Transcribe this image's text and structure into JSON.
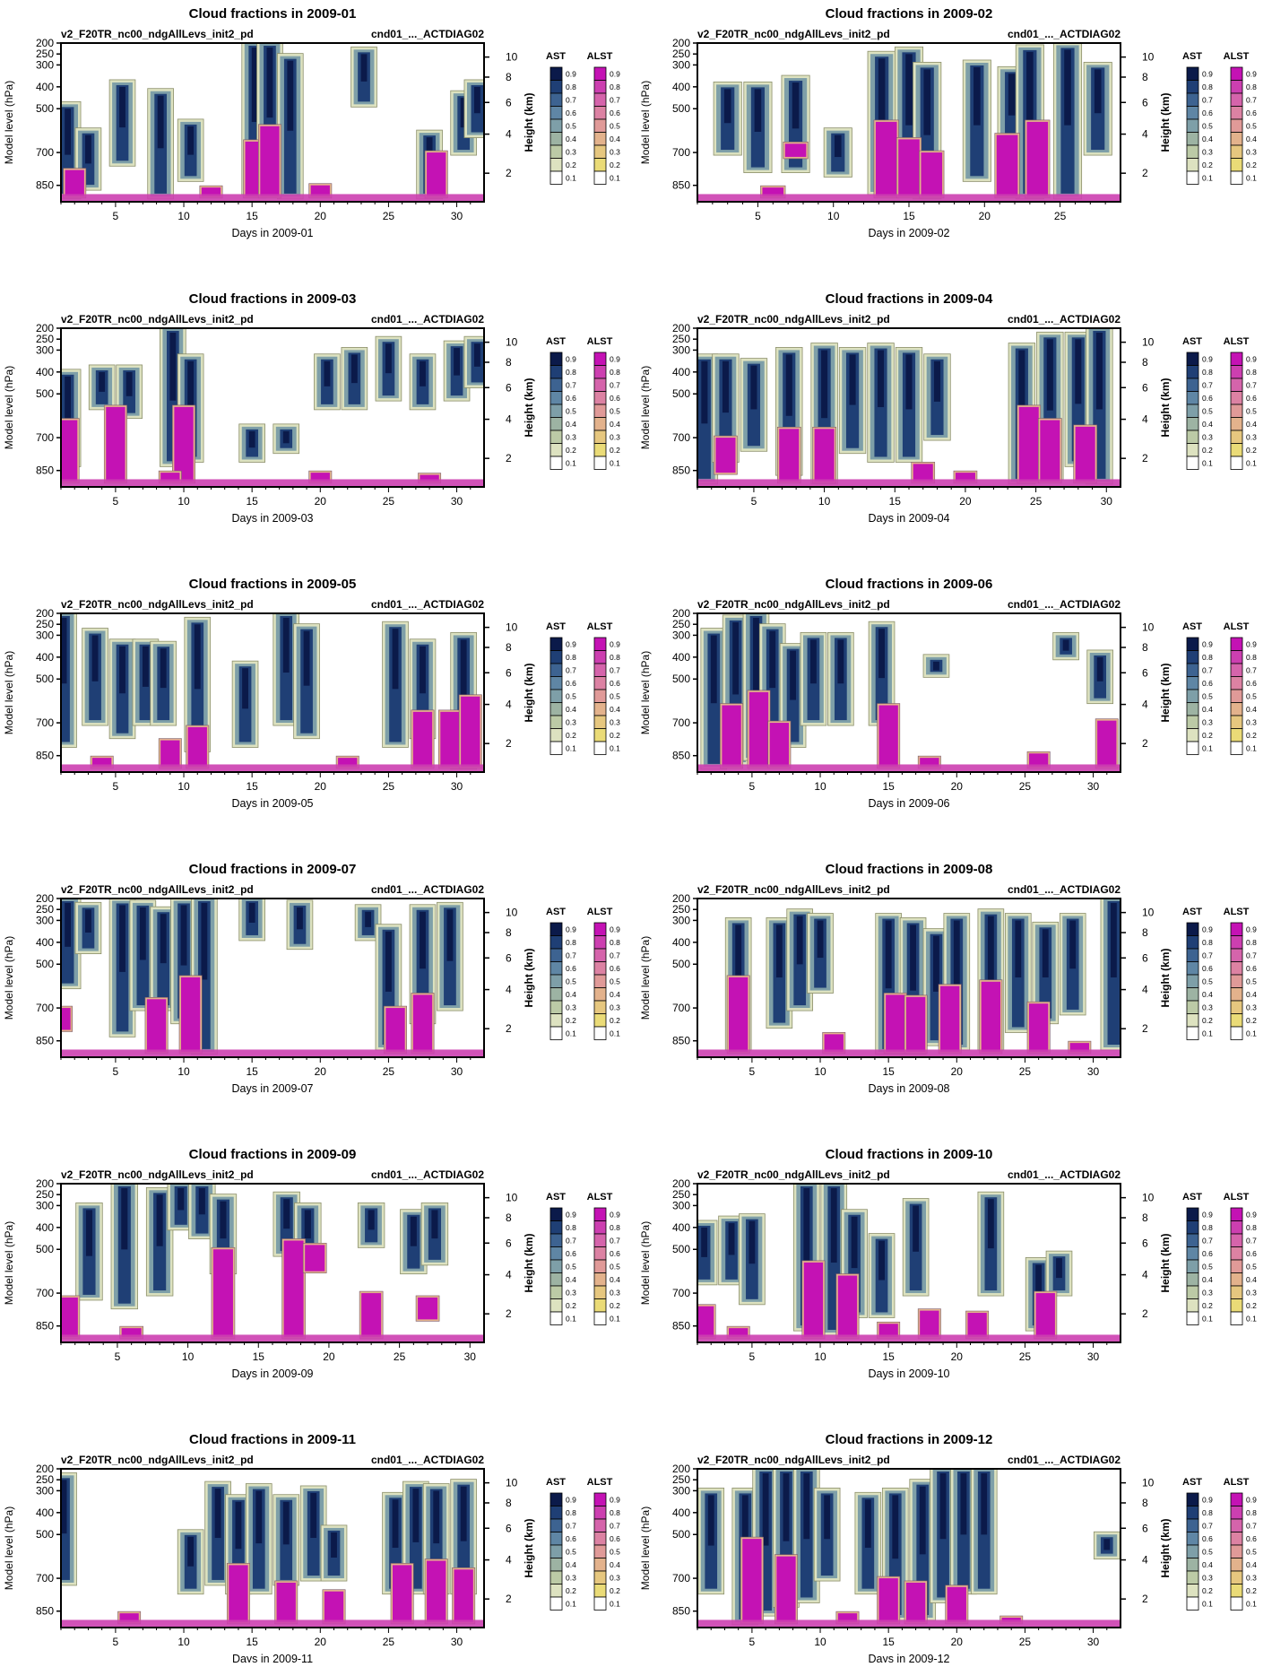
{
  "common": {
    "subtitle_left": "v2_F20TR_nc00_ndgAllLevs_init2_pd",
    "subtitle_right": "cnd01_..._ACTDIAG02",
    "ylabel_left": "Model level (hPa)",
    "ylabel_right": "Height (km)",
    "pressure_ticks": [
      "200",
      "250",
      "300",
      "400",
      "500",
      "700",
      "850"
    ],
    "height_ticks": [
      "2",
      "4",
      "6",
      "8",
      "10"
    ],
    "colorbar_titles": [
      "AST",
      "ALST"
    ],
    "colorbar_levels": [
      "0.9",
      "0.8",
      "0.7",
      "0.6",
      "0.5",
      "0.4",
      "0.3",
      "0.2",
      "0.1"
    ],
    "colors_ast": [
      "#0b1a4a",
      "#1f3f75",
      "#3d6391",
      "#5f86a5",
      "#7e9fa8",
      "#9db3a3",
      "#bccaa6",
      "#dde2c0",
      "#ffffff"
    ],
    "colors_alst": [
      "#c412b4",
      "#cc3fb0",
      "#d564ab",
      "#dc82a3",
      "#e09a98",
      "#e3b28c",
      "#e6c77f",
      "#eadb77",
      "#ffffff"
    ]
  },
  "chart_data": [
    {
      "type": "heatmap",
      "title": "Cloud fractions in 2009-01",
      "xlabel": "Days in 2009-01",
      "ndays": 31,
      "xticks": [
        "5",
        "10",
        "15",
        "20",
        "25",
        "30"
      ],
      "clouds": [
        [
          1.5,
          900,
          480
        ],
        [
          3,
          860,
          600
        ],
        [
          5.5,
          750,
          380
        ],
        [
          8.3,
          900,
          420
        ],
        [
          10.5,
          820,
          560
        ],
        [
          15.2,
          880,
          200
        ],
        [
          16.3,
          840,
          200
        ],
        [
          17.8,
          900,
          260
        ],
        [
          23.2,
          480,
          230
        ],
        [
          28,
          900,
          610
        ],
        [
          30.5,
          700,
          430
        ],
        [
          31.5,
          620,
          380
        ]
      ],
      "liquid": [
        [
          15.2,
          900,
          650
        ],
        [
          16.3,
          900,
          580
        ],
        [
          28.5,
          900,
          700
        ],
        [
          12,
          900,
          860
        ],
        [
          20,
          900,
          850
        ],
        [
          2,
          900,
          780
        ]
      ]
    },
    {
      "type": "heatmap",
      "title": "Cloud fractions in 2009-02",
      "xlabel": "Days in 2009-02",
      "ndays": 28,
      "xticks": [
        "5",
        "10",
        "15",
        "20",
        "25"
      ],
      "clouds": [
        [
          3,
          700,
          390
        ],
        [
          5,
          780,
          390
        ],
        [
          7.5,
          780,
          360
        ],
        [
          10.3,
          800,
          600
        ],
        [
          13.2,
          880,
          250
        ],
        [
          15,
          880,
          230
        ],
        [
          16.2,
          900,
          300
        ],
        [
          19.5,
          820,
          290
        ],
        [
          21.8,
          700,
          320
        ],
        [
          23,
          900,
          220
        ],
        [
          25.5,
          900,
          210
        ],
        [
          27.5,
          700,
          300
        ]
      ],
      "liquid": [
        [
          13.5,
          900,
          560
        ],
        [
          15,
          900,
          640
        ],
        [
          16.5,
          900,
          700
        ],
        [
          21.5,
          900,
          620
        ],
        [
          23.5,
          900,
          560
        ],
        [
          7.5,
          720,
          660
        ],
        [
          6,
          900,
          860
        ]
      ]
    },
    {
      "type": "heatmap",
      "title": "Cloud fractions in 2009-03",
      "xlabel": "Days in 2009-03",
      "ndays": 31,
      "xticks": [
        "5",
        "10",
        "15",
        "20",
        "25",
        "30"
      ],
      "clouds": [
        [
          1.5,
          820,
          400
        ],
        [
          4,
          560,
          380
        ],
        [
          6,
          600,
          380
        ],
        [
          9.2,
          820,
          200
        ],
        [
          10.5,
          800,
          330
        ],
        [
          15,
          800,
          650
        ],
        [
          17.5,
          760,
          650
        ],
        [
          20.5,
          560,
          330
        ],
        [
          22.5,
          560,
          300
        ],
        [
          25,
          520,
          250
        ],
        [
          27.5,
          560,
          330
        ],
        [
          30,
          520,
          270
        ],
        [
          31.5,
          460,
          250
        ]
      ],
      "liquid": [
        [
          10,
          900,
          560
        ],
        [
          5,
          900,
          560
        ],
        [
          1.5,
          900,
          620
        ],
        [
          9,
          900,
          860
        ],
        [
          20,
          900,
          860
        ],
        [
          28,
          900,
          870
        ]
      ]
    },
    {
      "type": "heatmap",
      "title": "Cloud fractions in 2009-04",
      "xlabel": "Days in 2009-04",
      "ndays": 30,
      "xticks": [
        "5",
        "10",
        "15",
        "20",
        "25",
        "30"
      ],
      "clouds": [
        [
          1.5,
          900,
          330
        ],
        [
          3,
          800,
          330
        ],
        [
          5,
          750,
          350
        ],
        [
          7.5,
          860,
          300
        ],
        [
          10,
          900,
          280
        ],
        [
          12,
          760,
          300
        ],
        [
          14,
          800,
          280
        ],
        [
          16,
          800,
          300
        ],
        [
          18,
          700,
          330
        ],
        [
          24,
          900,
          280
        ],
        [
          26,
          880,
          230
        ],
        [
          28,
          820,
          230
        ],
        [
          29.5,
          900,
          200
        ]
      ],
      "liquid": [
        [
          7.5,
          900,
          660
        ],
        [
          10,
          900,
          660
        ],
        [
          24.5,
          900,
          560
        ],
        [
          26,
          900,
          620
        ],
        [
          28.5,
          900,
          650
        ],
        [
          3,
          860,
          700
        ],
        [
          20,
          900,
          860
        ],
        [
          17,
          900,
          820
        ]
      ]
    },
    {
      "type": "heatmap",
      "title": "Cloud fractions in 2009-05",
      "xlabel": "Days in 2009-05",
      "ndays": 31,
      "xticks": [
        "5",
        "10",
        "15",
        "20",
        "25",
        "30"
      ],
      "clouds": [
        [
          1.2,
          800,
          200
        ],
        [
          3.5,
          700,
          280
        ],
        [
          5.5,
          760,
          330
        ],
        [
          7.2,
          700,
          330
        ],
        [
          8.5,
          700,
          340
        ],
        [
          11,
          820,
          230
        ],
        [
          14.5,
          800,
          430
        ],
        [
          17.5,
          700,
          200
        ],
        [
          19,
          760,
          260
        ],
        [
          25.5,
          800,
          250
        ],
        [
          27.5,
          760,
          330
        ],
        [
          30.5,
          900,
          300
        ]
      ],
      "liquid": [
        [
          27.5,
          900,
          650
        ],
        [
          29.5,
          900,
          650
        ],
        [
          31,
          900,
          580
        ],
        [
          9,
          900,
          780
        ],
        [
          11,
          900,
          720
        ],
        [
          4,
          900,
          860
        ],
        [
          22,
          900,
          860
        ]
      ]
    },
    {
      "type": "heatmap",
      "title": "Cloud fractions in 2009-06",
      "xlabel": "Days in 2009-06",
      "ndays": 31,
      "xticks": [
        "5",
        "10",
        "15",
        "20",
        "25",
        "30"
      ],
      "clouds": [
        [
          2.2,
          900,
          280
        ],
        [
          3.8,
          880,
          220
        ],
        [
          5.3,
          860,
          200
        ],
        [
          6.5,
          780,
          260
        ],
        [
          8,
          800,
          350
        ],
        [
          9.5,
          700,
          300
        ],
        [
          11.5,
          700,
          300
        ],
        [
          14.5,
          700,
          250
        ],
        [
          18.5,
          480,
          400
        ],
        [
          28,
          400,
          300
        ],
        [
          30.5,
          600,
          380
        ]
      ],
      "liquid": [
        [
          3.5,
          900,
          620
        ],
        [
          5.5,
          900,
          560
        ],
        [
          7,
          900,
          700
        ],
        [
          15,
          900,
          620
        ],
        [
          18,
          900,
          860
        ],
        [
          26,
          900,
          840
        ],
        [
          31,
          900,
          690
        ]
      ]
    },
    {
      "type": "heatmap",
      "title": "Cloud fractions in 2009-07",
      "xlabel": "Days in 2009-07",
      "ndays": 31,
      "xticks": [
        "5",
        "10",
        "15",
        "20",
        "25",
        "30"
      ],
      "clouds": [
        [
          1.5,
          600,
          200
        ],
        [
          3,
          440,
          230
        ],
        [
          5.5,
          820,
          210
        ],
        [
          7,
          700,
          220
        ],
        [
          8.5,
          700,
          250
        ],
        [
          10,
          760,
          210
        ],
        [
          11.5,
          900,
          200
        ],
        [
          15,
          380,
          200
        ],
        [
          18.5,
          420,
          220
        ],
        [
          23.5,
          380,
          240
        ],
        [
          25,
          880,
          330
        ],
        [
          27.5,
          760,
          240
        ],
        [
          29.5,
          700,
          230
        ]
      ],
      "liquid": [
        [
          10.5,
          900,
          560
        ],
        [
          8,
          900,
          660
        ],
        [
          25.5,
          900,
          700
        ],
        [
          27.5,
          900,
          640
        ],
        [
          1,
          800,
          700
        ]
      ]
    },
    {
      "type": "heatmap",
      "title": "Cloud fractions in 2009-08",
      "xlabel": "Days in 2009-08",
      "ndays": 31,
      "xticks": [
        "5",
        "10",
        "15",
        "20",
        "25",
        "30"
      ],
      "clouds": [
        [
          4,
          880,
          300
        ],
        [
          7,
          780,
          300
        ],
        [
          8.5,
          700,
          260
        ],
        [
          10,
          620,
          280
        ],
        [
          15,
          900,
          280
        ],
        [
          16.8,
          900,
          300
        ],
        [
          18.5,
          860,
          350
        ],
        [
          20,
          880,
          280
        ],
        [
          22.5,
          880,
          260
        ],
        [
          24.5,
          800,
          280
        ],
        [
          26.5,
          760,
          320
        ],
        [
          28.5,
          720,
          280
        ],
        [
          31.5,
          880,
          200
        ]
      ],
      "liquid": [
        [
          4,
          900,
          560
        ],
        [
          15.5,
          900,
          640
        ],
        [
          17,
          900,
          650
        ],
        [
          19.5,
          900,
          600
        ],
        [
          22.5,
          900,
          580
        ],
        [
          26,
          900,
          680
        ],
        [
          11,
          900,
          820
        ],
        [
          29,
          900,
          860
        ]
      ]
    },
    {
      "type": "heatmap",
      "title": "Cloud fractions in 2009-09",
      "xlabel": "Days in 2009-09",
      "ndays": 30,
      "xticks": [
        "5",
        "10",
        "15",
        "20",
        "25",
        "30"
      ],
      "clouds": [
        [
          3,
          720,
          300
        ],
        [
          5.5,
          760,
          200
        ],
        [
          8,
          700,
          230
        ],
        [
          9.5,
          400,
          200
        ],
        [
          11,
          440,
          200
        ],
        [
          12.5,
          600,
          260
        ],
        [
          17,
          520,
          250
        ],
        [
          18.5,
          560,
          300
        ],
        [
          23,
          480,
          300
        ],
        [
          26,
          600,
          330
        ],
        [
          27.5,
          560,
          300
        ]
      ],
      "liquid": [
        [
          12.5,
          900,
          500
        ],
        [
          17.5,
          900,
          460
        ],
        [
          19,
          600,
          480
        ],
        [
          23,
          900,
          700
        ],
        [
          1.5,
          900,
          720
        ],
        [
          6,
          900,
          860
        ],
        [
          27,
          820,
          720
        ]
      ]
    },
    {
      "type": "heatmap",
      "title": "Cloud fractions in 2009-10",
      "xlabel": "Days in 2009-10",
      "ndays": 31,
      "xticks": [
        "5",
        "10",
        "15",
        "20",
        "25",
        "30"
      ],
      "clouds": [
        [
          1.5,
          650,
          380
        ],
        [
          3.5,
          650,
          360
        ],
        [
          5,
          740,
          350
        ],
        [
          9,
          860,
          200
        ],
        [
          11,
          880,
          200
        ],
        [
          12.5,
          800,
          330
        ],
        [
          14.5,
          800,
          440
        ],
        [
          17,
          700,
          280
        ],
        [
          22.5,
          700,
          250
        ],
        [
          26,
          860,
          550
        ],
        [
          27.5,
          700,
          520
        ]
      ],
      "liquid": [
        [
          9.5,
          900,
          560
        ],
        [
          12,
          900,
          620
        ],
        [
          15,
          900,
          840
        ],
        [
          18,
          900,
          780
        ],
        [
          21.5,
          900,
          790
        ],
        [
          26.5,
          900,
          700
        ],
        [
          4,
          900,
          860
        ],
        [
          1.5,
          900,
          760
        ]
      ]
    },
    {
      "type": "heatmap",
      "title": "Cloud fractions in 2009-11",
      "xlabel": "Days in 2009-11",
      "ndays": 31,
      "xticks": [
        "5",
        "10",
        "15",
        "20",
        "25",
        "30"
      ],
      "clouds": [
        [
          1.2,
          720,
          230
        ],
        [
          10.5,
          760,
          490
        ],
        [
          12.5,
          720,
          270
        ],
        [
          14,
          760,
          330
        ],
        [
          15.5,
          760,
          280
        ],
        [
          17.5,
          720,
          330
        ],
        [
          19.5,
          700,
          290
        ],
        [
          21,
          700,
          470
        ],
        [
          25.5,
          760,
          320
        ],
        [
          27,
          760,
          270
        ],
        [
          28.5,
          760,
          280
        ],
        [
          30.5,
          760,
          260
        ]
      ],
      "liquid": [
        [
          14,
          900,
          640
        ],
        [
          17.5,
          900,
          720
        ],
        [
          21,
          900,
          760
        ],
        [
          26,
          900,
          640
        ],
        [
          28.5,
          900,
          620
        ],
        [
          30.5,
          900,
          660
        ],
        [
          6,
          900,
          860
        ]
      ]
    },
    {
      "type": "heatmap",
      "title": "Cloud fractions in 2009-12",
      "xlabel": "Days in 2009-12",
      "ndays": 31,
      "xticks": [
        "5",
        "10",
        "15",
        "20",
        "25",
        "30"
      ],
      "clouds": [
        [
          2,
          760,
          300
        ],
        [
          4.5,
          900,
          300
        ],
        [
          6,
          860,
          200
        ],
        [
          7.5,
          820,
          200
        ],
        [
          9,
          800,
          200
        ],
        [
          10.5,
          700,
          300
        ],
        [
          13.5,
          760,
          320
        ],
        [
          15.5,
          880,
          300
        ],
        [
          17.5,
          880,
          260
        ],
        [
          19,
          800,
          200
        ],
        [
          20.5,
          760,
          200
        ],
        [
          22,
          760,
          200
        ],
        [
          31,
          600,
          500
        ]
      ],
      "liquid": [
        [
          5,
          900,
          520
        ],
        [
          7.5,
          900,
          600
        ],
        [
          15,
          900,
          700
        ],
        [
          17,
          900,
          720
        ],
        [
          20,
          900,
          740
        ],
        [
          12,
          900,
          860
        ],
        [
          24,
          900,
          880
        ]
      ]
    }
  ]
}
